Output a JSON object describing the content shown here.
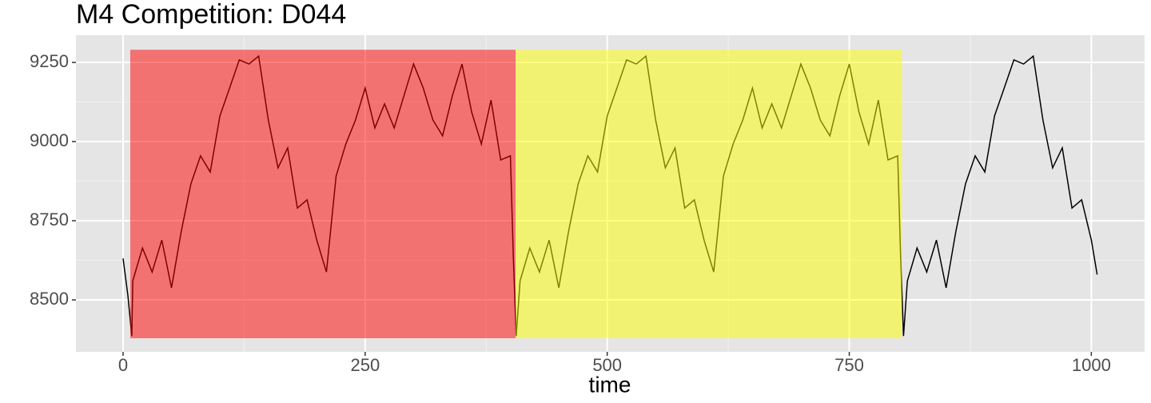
{
  "chart_data": {
    "type": "line",
    "title": "M4 Competition: D044",
    "x_label": "time",
    "x": [
      0,
      5,
      9,
      10,
      20,
      30,
      40,
      50,
      60,
      70,
      80,
      90,
      100,
      110,
      120,
      130,
      140,
      150,
      160,
      170,
      180,
      190,
      200,
      210,
      220,
      230,
      240,
      250,
      260,
      270,
      280,
      290,
      300,
      310,
      320,
      330,
      340,
      350,
      360,
      370,
      380,
      390,
      400,
      403,
      406,
      410,
      420,
      430,
      440,
      450,
      460,
      470,
      480,
      490,
      500,
      510,
      520,
      530,
      540,
      550,
      560,
      570,
      580,
      590,
      600,
      610,
      620,
      630,
      640,
      650,
      660,
      670,
      680,
      690,
      700,
      710,
      720,
      730,
      740,
      750,
      760,
      770,
      780,
      790,
      800,
      803,
      806,
      810,
      820,
      830,
      840,
      850,
      860,
      870,
      880,
      890,
      900,
      910,
      920,
      930,
      940,
      950,
      960,
      970,
      980,
      990,
      1000,
      1006
    ],
    "series": [
      {
        "color": "#000000",
        "values": [
          8631,
          8513,
          8386,
          8560,
          8664,
          8588,
          8689,
          8538,
          8715,
          8866,
          8955,
          8904,
          9081,
          9169,
          9258,
          9245,
          9270,
          9068,
          8917,
          8980,
          8790,
          8816,
          8689,
          8588,
          8891,
          8992,
          9068,
          9169,
          9043,
          9119,
          9043,
          9144,
          9245,
          9169,
          9068,
          9018,
          9144,
          9245,
          9093,
          8992,
          9131,
          8942,
          8955,
          8639,
          8386,
          8560,
          8664,
          8588,
          8689,
          8538,
          8715,
          8866,
          8955,
          8904,
          9081,
          9169,
          9258,
          9245,
          9270,
          9068,
          8917,
          8980,
          8790,
          8816,
          8689,
          8588,
          8891,
          8992,
          9068,
          9169,
          9043,
          9119,
          9043,
          9144,
          9245,
          9169,
          9068,
          9018,
          9144,
          9245,
          9093,
          8992,
          9131,
          8942,
          8955,
          8639,
          8386,
          8560,
          8664,
          8588,
          8689,
          8538,
          8715,
          8866,
          8955,
          8904,
          9081,
          9169,
          9258,
          9245,
          9270,
          9068,
          8917,
          8980,
          8790,
          8816,
          8689,
          8580
        ]
      }
    ],
    "regions": [
      {
        "xmin": 7.4,
        "xmax": 405.4,
        "ymin": 8379,
        "ymax": 9290,
        "color": "#ff0000",
        "alpha": 0.5
      },
      {
        "xmin": 405.4,
        "xmax": 804.3,
        "ymin": 8379,
        "ymax": 9290,
        "color": "#ffff00",
        "alpha": 0.5
      }
    ],
    "xlim": [
      -48.7,
      1055
    ],
    "ylim": [
      8336,
      9336
    ],
    "xticks": [
      0,
      250,
      500,
      750,
      1000
    ],
    "yticks": [
      8500,
      8750,
      9000,
      9250
    ],
    "grid": true
  }
}
